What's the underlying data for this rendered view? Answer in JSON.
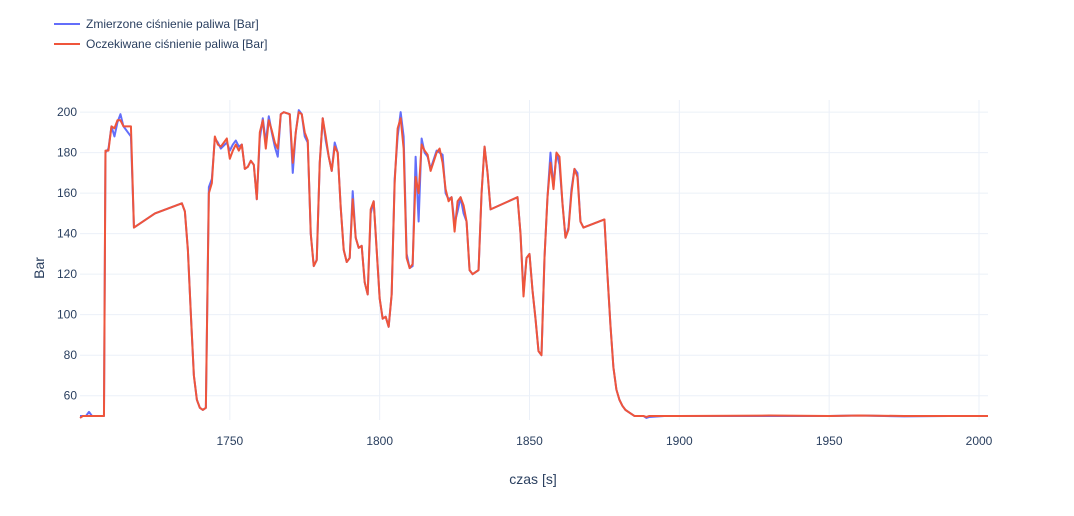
{
  "chart_data": {
    "type": "line",
    "xlabel": "czas [s]",
    "ylabel": "Bar",
    "xlim": [
      1700,
      2003
    ],
    "ylim": [
      48,
      206
    ],
    "x_ticks": [
      1750,
      1800,
      1850,
      1900,
      1950,
      2000
    ],
    "y_ticks": [
      60,
      80,
      100,
      120,
      140,
      160,
      180,
      200
    ],
    "grid": true,
    "legend_position": "top-left",
    "series": [
      {
        "name": "Zmierzone ciśnienie paliwa [Bar]",
        "color": "#636efa",
        "points": [
          [
            1700,
            50
          ],
          [
            1702,
            50
          ],
          [
            1703,
            52
          ],
          [
            1704,
            50
          ],
          [
            1708,
            50
          ],
          [
            1708.5,
            180
          ],
          [
            1709.5,
            182
          ],
          [
            1710.5,
            193
          ],
          [
            1711.5,
            188
          ],
          [
            1712.5,
            195
          ],
          [
            1713.5,
            199
          ],
          [
            1714.5,
            193
          ],
          [
            1716,
            190
          ],
          [
            1717,
            188
          ],
          [
            1718,
            143
          ],
          [
            1725,
            150
          ],
          [
            1734,
            155
          ],
          [
            1735,
            151
          ],
          [
            1736,
            132
          ],
          [
            1737,
            100
          ],
          [
            1738,
            70
          ],
          [
            1739,
            58
          ],
          [
            1740,
            54
          ],
          [
            1741,
            53
          ],
          [
            1742,
            54
          ],
          [
            1743,
            163
          ],
          [
            1744,
            167
          ],
          [
            1745,
            187
          ],
          [
            1746,
            185
          ],
          [
            1747,
            182
          ],
          [
            1749,
            185
          ],
          [
            1750,
            181
          ],
          [
            1751,
            184
          ],
          [
            1752,
            186
          ],
          [
            1753,
            183
          ],
          [
            1754,
            184
          ],
          [
            1755,
            172
          ],
          [
            1756,
            173
          ],
          [
            1757,
            176
          ],
          [
            1758,
            174
          ],
          [
            1759,
            157
          ],
          [
            1760,
            187
          ],
          [
            1761,
            197
          ],
          [
            1762,
            185
          ],
          [
            1763,
            198
          ],
          [
            1764,
            190
          ],
          [
            1765,
            183
          ],
          [
            1766,
            178
          ],
          [
            1767,
            199
          ],
          [
            1768,
            200
          ],
          [
            1770,
            199
          ],
          [
            1771,
            170
          ],
          [
            1772,
            190
          ],
          [
            1773,
            201
          ],
          [
            1774,
            199
          ],
          [
            1775,
            188
          ],
          [
            1776,
            185
          ],
          [
            1777,
            140
          ],
          [
            1778,
            124
          ],
          [
            1779,
            127
          ],
          [
            1780,
            175
          ],
          [
            1781,
            197
          ],
          [
            1782,
            186
          ],
          [
            1783,
            178
          ],
          [
            1784,
            171
          ],
          [
            1785,
            185
          ],
          [
            1786,
            180
          ],
          [
            1787,
            153
          ],
          [
            1788,
            132
          ],
          [
            1789,
            126
          ],
          [
            1790,
            128
          ],
          [
            1791,
            161
          ],
          [
            1792,
            138
          ],
          [
            1793,
            133
          ],
          [
            1794,
            134
          ],
          [
            1795,
            116
          ],
          [
            1796,
            110
          ],
          [
            1797,
            150
          ],
          [
            1798,
            156
          ],
          [
            1799,
            132
          ],
          [
            1800,
            108
          ],
          [
            1801,
            98
          ],
          [
            1802,
            99
          ],
          [
            1803,
            94
          ],
          [
            1804,
            110
          ],
          [
            1805,
            167
          ],
          [
            1806,
            188
          ],
          [
            1807,
            200
          ],
          [
            1808,
            188
          ],
          [
            1809,
            130
          ],
          [
            1810,
            123
          ],
          [
            1811,
            124
          ],
          [
            1812,
            178
          ],
          [
            1813,
            146
          ],
          [
            1814,
            187
          ],
          [
            1815,
            180
          ],
          [
            1816,
            178
          ],
          [
            1817,
            172
          ],
          [
            1819,
            181
          ],
          [
            1820,
            180
          ],
          [
            1821,
            179
          ],
          [
            1822,
            160
          ],
          [
            1823,
            157
          ],
          [
            1824,
            158
          ],
          [
            1825,
            145
          ],
          [
            1826,
            151
          ],
          [
            1827,
            158
          ],
          [
            1828,
            150
          ],
          [
            1829,
            146
          ],
          [
            1830,
            122
          ],
          [
            1831,
            120
          ],
          [
            1833,
            122
          ],
          [
            1834,
            160
          ],
          [
            1835,
            183
          ],
          [
            1836,
            170
          ],
          [
            1837,
            152
          ],
          [
            1846,
            158
          ],
          [
            1847,
            140
          ],
          [
            1848,
            111
          ],
          [
            1849,
            128
          ],
          [
            1850,
            130
          ],
          [
            1851,
            112
          ],
          [
            1852,
            98
          ],
          [
            1853,
            82
          ],
          [
            1854,
            80
          ],
          [
            1855,
            128
          ],
          [
            1856,
            158
          ],
          [
            1857,
            180
          ],
          [
            1858,
            163
          ],
          [
            1859,
            180
          ],
          [
            1860,
            174
          ],
          [
            1861,
            155
          ],
          [
            1862,
            138
          ],
          [
            1863,
            143
          ],
          [
            1864,
            162
          ],
          [
            1865,
            172
          ],
          [
            1866,
            170
          ],
          [
            1867,
            146
          ],
          [
            1868,
            143
          ],
          [
            1875,
            147
          ],
          [
            1876,
            120
          ],
          [
            1877,
            95
          ],
          [
            1878,
            74
          ],
          [
            1879,
            63
          ],
          [
            1880,
            58
          ],
          [
            1881,
            55
          ],
          [
            1882,
            53
          ],
          [
            1883,
            52
          ],
          [
            1884,
            51
          ],
          [
            1885,
            50
          ],
          [
            1886,
            50
          ],
          [
            1888,
            50
          ],
          [
            1889,
            49
          ],
          [
            1890,
            49.5
          ],
          [
            1895,
            50
          ],
          [
            1900,
            50
          ],
          [
            1930,
            50
          ],
          [
            1950,
            50
          ],
          [
            1960,
            50.2
          ],
          [
            1975,
            49.8
          ],
          [
            1990,
            50
          ],
          [
            2003,
            50
          ]
        ]
      },
      {
        "name": "Oczekiwane ciśnienie paliwa [Bar]",
        "color": "#ef553b",
        "points": [
          [
            1700,
            49
          ],
          [
            1701,
            50
          ],
          [
            1708,
            50
          ],
          [
            1708.5,
            181
          ],
          [
            1709.5,
            181
          ],
          [
            1710.5,
            193
          ],
          [
            1711.5,
            192
          ],
          [
            1712.5,
            196
          ],
          [
            1713.5,
            196
          ],
          [
            1714.5,
            193
          ],
          [
            1717,
            193
          ],
          [
            1718,
            143
          ],
          [
            1725,
            150
          ],
          [
            1734,
            155
          ],
          [
            1735,
            151
          ],
          [
            1736,
            132
          ],
          [
            1737,
            100
          ],
          [
            1738,
            70
          ],
          [
            1739,
            58
          ],
          [
            1740,
            54
          ],
          [
            1741,
            53
          ],
          [
            1742,
            54
          ],
          [
            1743,
            160
          ],
          [
            1744,
            165
          ],
          [
            1745,
            188
          ],
          [
            1746,
            184
          ],
          [
            1747,
            183
          ],
          [
            1749,
            187
          ],
          [
            1750,
            177
          ],
          [
            1751,
            181
          ],
          [
            1752,
            184
          ],
          [
            1753,
            181
          ],
          [
            1754,
            184
          ],
          [
            1755,
            172
          ],
          [
            1756,
            173
          ],
          [
            1757,
            176
          ],
          [
            1758,
            174
          ],
          [
            1759,
            157
          ],
          [
            1760,
            190
          ],
          [
            1761,
            196
          ],
          [
            1762,
            182
          ],
          [
            1763,
            196
          ],
          [
            1764,
            191
          ],
          [
            1765,
            185
          ],
          [
            1766,
            182
          ],
          [
            1767,
            199
          ],
          [
            1768,
            200
          ],
          [
            1770,
            199
          ],
          [
            1771,
            175
          ],
          [
            1772,
            190
          ],
          [
            1773,
            200
          ],
          [
            1774,
            199
          ],
          [
            1775,
            190
          ],
          [
            1776,
            186
          ],
          [
            1777,
            140
          ],
          [
            1778,
            124
          ],
          [
            1779,
            127
          ],
          [
            1780,
            175
          ],
          [
            1781,
            197
          ],
          [
            1782,
            188
          ],
          [
            1783,
            178
          ],
          [
            1784,
            171
          ],
          [
            1785,
            183
          ],
          [
            1786,
            180
          ],
          [
            1787,
            153
          ],
          [
            1788,
            132
          ],
          [
            1789,
            126
          ],
          [
            1790,
            128
          ],
          [
            1791,
            157
          ],
          [
            1792,
            138
          ],
          [
            1793,
            133
          ],
          [
            1794,
            134
          ],
          [
            1795,
            116
          ],
          [
            1796,
            110
          ],
          [
            1797,
            152
          ],
          [
            1798,
            156
          ],
          [
            1799,
            132
          ],
          [
            1800,
            108
          ],
          [
            1801,
            98
          ],
          [
            1802,
            99
          ],
          [
            1803,
            94
          ],
          [
            1804,
            110
          ],
          [
            1805,
            165
          ],
          [
            1806,
            192
          ],
          [
            1807,
            197
          ],
          [
            1808,
            182
          ],
          [
            1809,
            128
          ],
          [
            1810,
            123
          ],
          [
            1811,
            125
          ],
          [
            1812,
            168
          ],
          [
            1813,
            160
          ],
          [
            1814,
            184
          ],
          [
            1815,
            181
          ],
          [
            1816,
            179
          ],
          [
            1817,
            171
          ],
          [
            1819,
            180
          ],
          [
            1820,
            182
          ],
          [
            1821,
            175
          ],
          [
            1822,
            162
          ],
          [
            1823,
            156
          ],
          [
            1824,
            158
          ],
          [
            1825,
            141
          ],
          [
            1826,
            156
          ],
          [
            1827,
            158
          ],
          [
            1828,
            154
          ],
          [
            1829,
            146
          ],
          [
            1830,
            122
          ],
          [
            1831,
            120
          ],
          [
            1833,
            122
          ],
          [
            1834,
            160
          ],
          [
            1835,
            183
          ],
          [
            1836,
            170
          ],
          [
            1837,
            152
          ],
          [
            1846,
            158
          ],
          [
            1847,
            140
          ],
          [
            1848,
            109
          ],
          [
            1849,
            128
          ],
          [
            1850,
            130
          ],
          [
            1851,
            112
          ],
          [
            1852,
            98
          ],
          [
            1853,
            82
          ],
          [
            1854,
            80
          ],
          [
            1855,
            128
          ],
          [
            1856,
            158
          ],
          [
            1857,
            175
          ],
          [
            1858,
            162
          ],
          [
            1859,
            180
          ],
          [
            1860,
            178
          ],
          [
            1861,
            155
          ],
          [
            1862,
            138
          ],
          [
            1863,
            142
          ],
          [
            1864,
            160
          ],
          [
            1865,
            172
          ],
          [
            1866,
            168
          ],
          [
            1867,
            146
          ],
          [
            1868,
            143
          ],
          [
            1875,
            147
          ],
          [
            1876,
            120
          ],
          [
            1877,
            95
          ],
          [
            1878,
            74
          ],
          [
            1879,
            63
          ],
          [
            1880,
            58
          ],
          [
            1881,
            55
          ],
          [
            1882,
            53
          ],
          [
            1883,
            52
          ],
          [
            1884,
            51
          ],
          [
            1885,
            50
          ],
          [
            1886,
            50
          ],
          [
            1888,
            50
          ],
          [
            1889,
            49.5
          ],
          [
            1890,
            50
          ],
          [
            1895,
            50
          ],
          [
            1900,
            50
          ],
          [
            1930,
            50.2
          ],
          [
            1950,
            50
          ],
          [
            1960,
            50.2
          ],
          [
            1975,
            50
          ],
          [
            1990,
            50
          ],
          [
            2003,
            50
          ]
        ]
      }
    ]
  }
}
